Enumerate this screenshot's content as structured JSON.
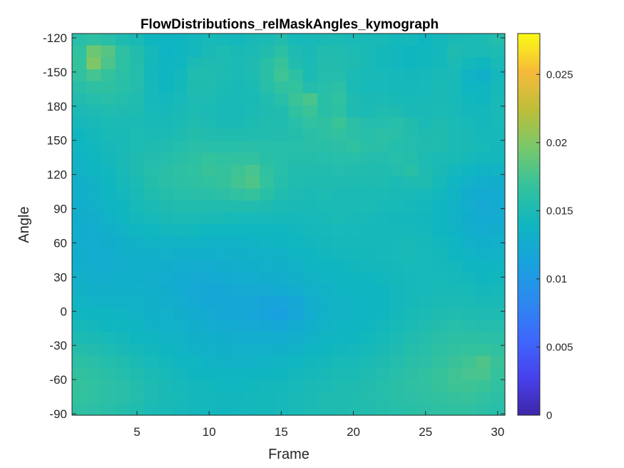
{
  "chart_data": {
    "type": "heatmap",
    "title": "FlowDistributions_relMaskAngles_kymograph",
    "xlabel": "Frame",
    "ylabel": "Angle",
    "x_range": [
      1,
      30
    ],
    "x_ticks": [
      "5",
      "10",
      "15",
      "20",
      "25",
      "30"
    ],
    "y_ticks": [
      "-120",
      "-150",
      "180",
      "150",
      "120",
      "90",
      "60",
      "30",
      "0",
      "-30",
      "-60",
      "-90"
    ],
    "colorbar": {
      "colormap": "parula",
      "clim": [
        0,
        0.028
      ],
      "ticks": [
        "0",
        "0.005",
        "0.01",
        "0.015",
        "0.02",
        "0.025"
      ]
    },
    "z_rows_top_to_bottom": [
      [
        0.0158,
        0.0163,
        0.0159,
        0.0152,
        0.0147,
        0.014,
        0.0137,
        0.014,
        0.0143,
        0.0146,
        0.0145,
        0.0143,
        0.0148,
        0.0149,
        0.0154,
        0.0146,
        0.0146,
        0.0148,
        0.015,
        0.0147,
        0.0147,
        0.0147,
        0.0144,
        0.0145,
        0.0141,
        0.0144,
        0.0148,
        0.0149,
        0.0151,
        0.0156
      ],
      [
        0.0165,
        0.0192,
        0.0182,
        0.0163,
        0.0154,
        0.0145,
        0.0136,
        0.0138,
        0.0143,
        0.0148,
        0.0151,
        0.0148,
        0.0149,
        0.0154,
        0.0161,
        0.0151,
        0.0148,
        0.0154,
        0.0153,
        0.0151,
        0.0148,
        0.0144,
        0.0142,
        0.0141,
        0.0142,
        0.0143,
        0.0152,
        0.0149,
        0.0149,
        0.0151
      ],
      [
        0.0167,
        0.0199,
        0.0178,
        0.0163,
        0.0156,
        0.0144,
        0.0138,
        0.0141,
        0.015,
        0.0152,
        0.0151,
        0.0149,
        0.0152,
        0.0159,
        0.0169,
        0.0154,
        0.015,
        0.0155,
        0.0154,
        0.0152,
        0.0148,
        0.0144,
        0.0142,
        0.0141,
        0.0142,
        0.0144,
        0.015,
        0.0144,
        0.0141,
        0.0147
      ],
      [
        0.0166,
        0.0175,
        0.0168,
        0.0161,
        0.0156,
        0.0144,
        0.0139,
        0.0143,
        0.0153,
        0.0153,
        0.0151,
        0.0149,
        0.0151,
        0.016,
        0.0172,
        0.0163,
        0.015,
        0.0155,
        0.0156,
        0.0149,
        0.0147,
        0.0146,
        0.0145,
        0.0144,
        0.0145,
        0.0147,
        0.0147,
        0.0136,
        0.0132,
        0.0143
      ],
      [
        0.0159,
        0.0163,
        0.0164,
        0.016,
        0.0155,
        0.0145,
        0.0141,
        0.0144,
        0.0152,
        0.0153,
        0.015,
        0.0147,
        0.0149,
        0.0158,
        0.0166,
        0.0167,
        0.0155,
        0.0158,
        0.0162,
        0.015,
        0.0146,
        0.0146,
        0.0145,
        0.0145,
        0.0146,
        0.0148,
        0.0146,
        0.0139,
        0.0139,
        0.0145
      ],
      [
        0.0154,
        0.0157,
        0.0159,
        0.0156,
        0.0153,
        0.0145,
        0.0143,
        0.0146,
        0.0151,
        0.0151,
        0.0148,
        0.0147,
        0.0148,
        0.0153,
        0.0159,
        0.0171,
        0.0177,
        0.016,
        0.0165,
        0.0152,
        0.0148,
        0.0149,
        0.0147,
        0.0146,
        0.0147,
        0.0148,
        0.0146,
        0.0142,
        0.0141,
        0.0147
      ],
      [
        0.0149,
        0.0151,
        0.0153,
        0.0152,
        0.0151,
        0.0146,
        0.0145,
        0.0148,
        0.0151,
        0.015,
        0.0147,
        0.0147,
        0.0149,
        0.0152,
        0.0154,
        0.0165,
        0.0171,
        0.016,
        0.0163,
        0.0152,
        0.015,
        0.0153,
        0.0152,
        0.0148,
        0.0148,
        0.015,
        0.0147,
        0.0144,
        0.0143,
        0.0147
      ],
      [
        0.0145,
        0.0147,
        0.0149,
        0.0149,
        0.015,
        0.0147,
        0.0147,
        0.015,
        0.0153,
        0.0151,
        0.0148,
        0.0148,
        0.0151,
        0.0154,
        0.0153,
        0.0158,
        0.0165,
        0.0164,
        0.0171,
        0.0162,
        0.0155,
        0.0157,
        0.0158,
        0.0154,
        0.015,
        0.0152,
        0.0149,
        0.0146,
        0.0144,
        0.0146
      ],
      [
        0.0141,
        0.0144,
        0.0147,
        0.0148,
        0.0151,
        0.015,
        0.015,
        0.0152,
        0.0156,
        0.0154,
        0.0153,
        0.0153,
        0.0153,
        0.0154,
        0.0155,
        0.0156,
        0.016,
        0.0163,
        0.0166,
        0.0162,
        0.0158,
        0.0162,
        0.0159,
        0.0155,
        0.0152,
        0.0153,
        0.015,
        0.0148,
        0.0145,
        0.0145
      ],
      [
        0.0138,
        0.0142,
        0.0145,
        0.0147,
        0.0151,
        0.0152,
        0.0153,
        0.0157,
        0.016,
        0.0159,
        0.0158,
        0.0159,
        0.016,
        0.0158,
        0.0158,
        0.0158,
        0.0159,
        0.016,
        0.0162,
        0.0165,
        0.016,
        0.016,
        0.0157,
        0.0156,
        0.0153,
        0.0153,
        0.015,
        0.0148,
        0.0146,
        0.0144
      ],
      [
        0.0136,
        0.014,
        0.0144,
        0.0148,
        0.0152,
        0.0155,
        0.0157,
        0.016,
        0.0163,
        0.0167,
        0.0165,
        0.0166,
        0.0166,
        0.016,
        0.0158,
        0.0156,
        0.0156,
        0.0157,
        0.0158,
        0.0158,
        0.0156,
        0.0155,
        0.0158,
        0.0156,
        0.0151,
        0.015,
        0.0148,
        0.0145,
        0.0143,
        0.0142
      ],
      [
        0.0134,
        0.0138,
        0.0142,
        0.0147,
        0.0152,
        0.0157,
        0.016,
        0.0163,
        0.0165,
        0.017,
        0.0168,
        0.0172,
        0.0176,
        0.0165,
        0.0158,
        0.0154,
        0.0154,
        0.0154,
        0.0155,
        0.0154,
        0.0154,
        0.0153,
        0.0155,
        0.016,
        0.0152,
        0.0148,
        0.0143,
        0.0139,
        0.0136,
        0.0137
      ],
      [
        0.0132,
        0.0135,
        0.014,
        0.0145,
        0.015,
        0.0156,
        0.016,
        0.0162,
        0.0163,
        0.0165,
        0.0168,
        0.0174,
        0.0179,
        0.0167,
        0.0157,
        0.0153,
        0.0152,
        0.0152,
        0.0152,
        0.0151,
        0.0152,
        0.0151,
        0.015,
        0.0152,
        0.0151,
        0.0145,
        0.0138,
        0.0131,
        0.0127,
        0.0128
      ],
      [
        0.013,
        0.0133,
        0.0138,
        0.0143,
        0.0148,
        0.0153,
        0.0156,
        0.0158,
        0.0159,
        0.016,
        0.0162,
        0.0165,
        0.0168,
        0.016,
        0.0154,
        0.0151,
        0.015,
        0.0151,
        0.015,
        0.015,
        0.015,
        0.0149,
        0.0148,
        0.0147,
        0.0146,
        0.0142,
        0.0136,
        0.0128,
        0.0123,
        0.0125
      ],
      [
        0.0129,
        0.0131,
        0.0136,
        0.0141,
        0.0146,
        0.015,
        0.0152,
        0.0154,
        0.0154,
        0.0154,
        0.0154,
        0.0154,
        0.0154,
        0.0152,
        0.015,
        0.0148,
        0.0147,
        0.0149,
        0.015,
        0.0149,
        0.0149,
        0.0147,
        0.0146,
        0.0145,
        0.0143,
        0.014,
        0.0135,
        0.0127,
        0.0122,
        0.0124
      ],
      [
        0.0128,
        0.0129,
        0.0133,
        0.0139,
        0.0143,
        0.0146,
        0.0148,
        0.0149,
        0.0149,
        0.0148,
        0.0147,
        0.0146,
        0.0146,
        0.0146,
        0.0145,
        0.0145,
        0.0146,
        0.0147,
        0.0149,
        0.0147,
        0.0146,
        0.0145,
        0.0144,
        0.0143,
        0.0142,
        0.0139,
        0.0135,
        0.0128,
        0.0123,
        0.0125
      ],
      [
        0.0127,
        0.0127,
        0.013,
        0.0135,
        0.0139,
        0.0141,
        0.0142,
        0.0143,
        0.0142,
        0.0141,
        0.014,
        0.014,
        0.014,
        0.014,
        0.0141,
        0.0142,
        0.0144,
        0.0145,
        0.0146,
        0.0146,
        0.0145,
        0.0145,
        0.0145,
        0.0145,
        0.0143,
        0.014,
        0.0136,
        0.013,
        0.0126,
        0.0128
      ],
      [
        0.0127,
        0.0126,
        0.0128,
        0.0132,
        0.0135,
        0.0136,
        0.0136,
        0.0136,
        0.0136,
        0.0135,
        0.0135,
        0.0135,
        0.0136,
        0.0137,
        0.0138,
        0.014,
        0.0142,
        0.0144,
        0.0145,
        0.0145,
        0.0145,
        0.0145,
        0.0146,
        0.0147,
        0.0145,
        0.0142,
        0.0138,
        0.0133,
        0.013,
        0.0131
      ],
      [
        0.0128,
        0.0126,
        0.0127,
        0.013,
        0.0132,
        0.0132,
        0.0131,
        0.013,
        0.013,
        0.013,
        0.0131,
        0.0132,
        0.0133,
        0.0134,
        0.0135,
        0.0137,
        0.0139,
        0.0142,
        0.0143,
        0.0144,
        0.0144,
        0.0145,
        0.0146,
        0.0147,
        0.0146,
        0.0144,
        0.0141,
        0.0137,
        0.0134,
        0.0135
      ],
      [
        0.0129,
        0.0127,
        0.0127,
        0.0129,
        0.013,
        0.013,
        0.0128,
        0.0127,
        0.0126,
        0.0126,
        0.0128,
        0.0129,
        0.013,
        0.0131,
        0.0132,
        0.0134,
        0.0137,
        0.0139,
        0.0141,
        0.0142,
        0.0143,
        0.0144,
        0.0145,
        0.0146,
        0.0146,
        0.0145,
        0.0143,
        0.014,
        0.0138,
        0.0139
      ],
      [
        0.0131,
        0.0129,
        0.0129,
        0.013,
        0.013,
        0.0129,
        0.0127,
        0.0125,
        0.0123,
        0.0123,
        0.0124,
        0.0126,
        0.0127,
        0.0128,
        0.0129,
        0.0131,
        0.0134,
        0.0137,
        0.0139,
        0.014,
        0.0141,
        0.0142,
        0.0144,
        0.0145,
        0.0146,
        0.0146,
        0.0145,
        0.0143,
        0.0141,
        0.0142
      ],
      [
        0.0134,
        0.0132,
        0.0132,
        0.0132,
        0.0131,
        0.013,
        0.0128,
        0.0125,
        0.0122,
        0.0121,
        0.0121,
        0.0122,
        0.0123,
        0.0123,
        0.0124,
        0.0127,
        0.0131,
        0.0135,
        0.0137,
        0.0138,
        0.0139,
        0.0141,
        0.0143,
        0.0145,
        0.0146,
        0.0147,
        0.0147,
        0.0146,
        0.0144,
        0.0145
      ],
      [
        0.0137,
        0.0135,
        0.0135,
        0.0134,
        0.0133,
        0.0131,
        0.0129,
        0.0126,
        0.0123,
        0.0121,
        0.012,
        0.012,
        0.0119,
        0.0116,
        0.0114,
        0.012,
        0.0127,
        0.0133,
        0.0136,
        0.0137,
        0.0138,
        0.014,
        0.0143,
        0.0145,
        0.0147,
        0.0149,
        0.015,
        0.0149,
        0.0147,
        0.0148
      ],
      [
        0.0141,
        0.0139,
        0.0138,
        0.0137,
        0.0135,
        0.0133,
        0.0131,
        0.0128,
        0.0125,
        0.0123,
        0.0121,
        0.012,
        0.0118,
        0.0113,
        0.011,
        0.0117,
        0.0126,
        0.0133,
        0.0136,
        0.0137,
        0.0138,
        0.0141,
        0.0144,
        0.0147,
        0.015,
        0.0152,
        0.0153,
        0.0152,
        0.0151,
        0.0151
      ],
      [
        0.0145,
        0.0143,
        0.0141,
        0.014,
        0.0138,
        0.0135,
        0.0133,
        0.0131,
        0.0128,
        0.0126,
        0.0124,
        0.0123,
        0.0122,
        0.012,
        0.012,
        0.0124,
        0.013,
        0.0135,
        0.0137,
        0.0138,
        0.014,
        0.0143,
        0.0146,
        0.015,
        0.0153,
        0.0156,
        0.0158,
        0.0157,
        0.0156,
        0.0155
      ],
      [
        0.015,
        0.0148,
        0.0146,
        0.0144,
        0.0141,
        0.0138,
        0.0136,
        0.0134,
        0.0132,
        0.013,
        0.0128,
        0.0127,
        0.0127,
        0.0127,
        0.0127,
        0.0129,
        0.0133,
        0.0137,
        0.0139,
        0.014,
        0.0142,
        0.0145,
        0.0149,
        0.0153,
        0.0156,
        0.0159,
        0.0162,
        0.0162,
        0.0161,
        0.016
      ],
      [
        0.0156,
        0.0154,
        0.0151,
        0.0148,
        0.0145,
        0.0142,
        0.0139,
        0.0137,
        0.0135,
        0.0133,
        0.0132,
        0.0131,
        0.0131,
        0.0131,
        0.0132,
        0.0134,
        0.0137,
        0.014,
        0.0142,
        0.0143,
        0.0145,
        0.0148,
        0.0152,
        0.0156,
        0.0159,
        0.0163,
        0.0166,
        0.0167,
        0.0168,
        0.0166
      ],
      [
        0.0161,
        0.0159,
        0.0156,
        0.0153,
        0.0149,
        0.0146,
        0.0143,
        0.014,
        0.0138,
        0.0136,
        0.0135,
        0.0135,
        0.0135,
        0.0136,
        0.0137,
        0.0139,
        0.0142,
        0.0144,
        0.0146,
        0.0147,
        0.0149,
        0.0152,
        0.0155,
        0.0159,
        0.0162,
        0.0166,
        0.017,
        0.0173,
        0.0179,
        0.017
      ],
      [
        0.0166,
        0.0163,
        0.016,
        0.0157,
        0.0153,
        0.0149,
        0.0146,
        0.0143,
        0.0141,
        0.0139,
        0.0138,
        0.0138,
        0.0139,
        0.014,
        0.0141,
        0.0143,
        0.0145,
        0.0147,
        0.0149,
        0.015,
        0.0152,
        0.0155,
        0.0158,
        0.0162,
        0.0165,
        0.0169,
        0.0173,
        0.0176,
        0.0177,
        0.0168
      ],
      [
        0.0168,
        0.0165,
        0.0162,
        0.0159,
        0.0155,
        0.0151,
        0.0148,
        0.0145,
        0.0143,
        0.0142,
        0.0141,
        0.0141,
        0.0142,
        0.0143,
        0.0144,
        0.0146,
        0.0148,
        0.015,
        0.0151,
        0.0152,
        0.0154,
        0.0157,
        0.016,
        0.0163,
        0.0166,
        0.0169,
        0.0172,
        0.0173,
        0.0171,
        0.0165
      ],
      [
        0.0167,
        0.0165,
        0.0162,
        0.0159,
        0.0155,
        0.0151,
        0.0148,
        0.0146,
        0.0144,
        0.0143,
        0.0142,
        0.0142,
        0.0143,
        0.0144,
        0.0145,
        0.0147,
        0.0149,
        0.0151,
        0.0152,
        0.0153,
        0.0155,
        0.0157,
        0.016,
        0.0162,
        0.0164,
        0.0166,
        0.0168,
        0.0169,
        0.0166,
        0.0162
      ],
      [
        0.0164,
        0.0162,
        0.0159,
        0.0156,
        0.0153,
        0.0149,
        0.0147,
        0.0145,
        0.0143,
        0.0142,
        0.0142,
        0.0142,
        0.0143,
        0.0144,
        0.0145,
        0.0147,
        0.0149,
        0.0151,
        0.0152,
        0.0153,
        0.0154,
        0.0156,
        0.0158,
        0.016,
        0.0162,
        0.0163,
        0.0164,
        0.0164,
        0.0161,
        0.0158
      ]
    ]
  }
}
